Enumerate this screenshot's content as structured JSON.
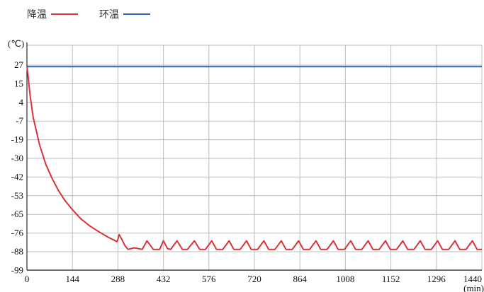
{
  "legend": [
    {
      "label": "降温",
      "color": "#d9323a"
    },
    {
      "label": "环温",
      "color": "#2e67ad"
    }
  ],
  "chart_data": {
    "type": "line",
    "ylabel": "(℃)",
    "xlabel": "(min)",
    "x_ticks": [
      0,
      144,
      288,
      432,
      576,
      720,
      864,
      1008,
      1152,
      1296,
      1440
    ],
    "y_ticks": [
      27,
      15,
      4,
      -7,
      -19,
      -30,
      -42,
      -53,
      -65,
      -76,
      -88,
      -99
    ],
    "xlim": [
      0,
      1440
    ],
    "grid": true,
    "series": [
      {
        "name": "降温",
        "color": "#d9323a",
        "x": [
          0,
          10,
          20,
          40,
          60,
          80,
          100,
          120,
          144,
          170,
          200,
          230,
          260,
          285,
          288,
          292,
          300,
          310,
          320,
          340,
          365,
          380,
          400,
          420,
          432,
          445,
          455,
          475,
          492,
          508,
          530,
          547,
          565,
          585,
          600,
          620,
          640,
          655,
          675,
          695,
          710,
          730,
          750,
          765,
          785,
          805,
          820,
          840,
          860,
          875,
          895,
          915,
          930,
          950,
          970,
          985,
          1005,
          1025,
          1040,
          1060,
          1080,
          1095,
          1115,
          1135,
          1150,
          1170,
          1190,
          1205,
          1225,
          1245,
          1260,
          1280,
          1300,
          1315,
          1335,
          1355,
          1370,
          1390,
          1410,
          1425,
          1440
        ],
        "y": [
          27,
          8,
          -5,
          -22,
          -34,
          -43,
          -50,
          -56,
          -62,
          -67.5,
          -72,
          -75.5,
          -79,
          -81.5,
          -80,
          -77,
          -80,
          -84,
          -86.5,
          -85.5,
          -86.5,
          -81,
          -86.5,
          -86.5,
          -81,
          -86,
          -86.5,
          -81,
          -86.5,
          -86.5,
          -81,
          -86.5,
          -86.5,
          -81,
          -86.5,
          -86.5,
          -81,
          -86.5,
          -86.5,
          -81,
          -86.5,
          -86.5,
          -81,
          -86.5,
          -86.5,
          -81,
          -86.5,
          -86.5,
          -81,
          -86.5,
          -86.5,
          -81,
          -86.5,
          -86.5,
          -81,
          -86.5,
          -86.5,
          -81,
          -86.5,
          -86.5,
          -81,
          -86.5,
          -86.5,
          -81,
          -86.5,
          -86.5,
          -81,
          -86.5,
          -86.5,
          -81,
          -86.5,
          -86.5,
          -81,
          -86.5,
          -86.5,
          -81,
          -86.5,
          -86.5,
          -81,
          -86.5,
          -86.5
        ]
      },
      {
        "name": "环温",
        "color": "#2e67ad",
        "x": [
          0,
          1440
        ],
        "y": [
          26,
          26
        ]
      }
    ]
  }
}
